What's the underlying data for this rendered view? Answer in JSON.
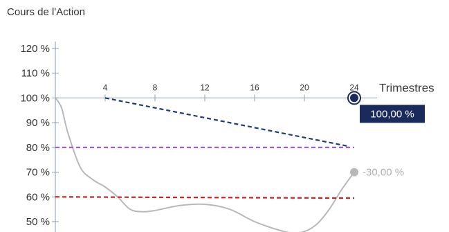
{
  "title": "Cours de l'Action",
  "chart_data": {
    "type": "line",
    "title": "Cours de l'Action",
    "xlabel": "Trimestres",
    "ylabel": "",
    "xlim": [
      0,
      24
    ],
    "ylim": [
      45,
      120
    ],
    "y_ticks": [
      {
        "value": 120,
        "label": "120 %"
      },
      {
        "value": 110,
        "label": "110 %"
      },
      {
        "value": 100,
        "label": "100 %"
      },
      {
        "value": 90,
        "label": "90 %"
      },
      {
        "value": 80,
        "label": "80 %"
      },
      {
        "value": 70,
        "label": "70 %"
      },
      {
        "value": 60,
        "label": "60 %",
        "color": "#cc2222"
      },
      {
        "value": 50,
        "label": "50 %"
      }
    ],
    "x_ticks": [
      {
        "value": 4,
        "label": "4"
      },
      {
        "value": 8,
        "label": "8"
      },
      {
        "value": 12,
        "label": "12"
      },
      {
        "value": 16,
        "label": "16"
      },
      {
        "value": 20,
        "label": "20"
      },
      {
        "value": 24,
        "label": "24"
      }
    ],
    "series": [
      {
        "style": "solid",
        "color": "#b8b8b8",
        "x": [
          0,
          0.5,
          1,
          2,
          3,
          4,
          5,
          6,
          7,
          8,
          10,
          12,
          14,
          16,
          18,
          19,
          20,
          21,
          22,
          23,
          24
        ],
        "y": [
          100,
          96,
          86,
          72,
          67,
          64,
          60,
          55,
          54,
          54.5,
          56.5,
          57,
          55,
          50,
          46.5,
          45.5,
          46,
          49,
          55,
          63,
          70
        ]
      },
      {
        "style": "dashed",
        "color": "#1f3c7a",
        "x": [
          4,
          23.5
        ],
        "y": [
          100,
          80.5
        ]
      },
      {
        "style": "dashed",
        "color": "#a05cd6",
        "x": [
          0,
          24
        ],
        "y": [
          80,
          80
        ]
      },
      {
        "style": "dashed",
        "color": "#cc2222",
        "x": [
          0,
          24
        ],
        "y": [
          60,
          59.5
        ]
      }
    ],
    "end_markers": [
      {
        "x": 24,
        "y": 100,
        "label": "100,00 %",
        "style": "ring",
        "color": "#1a2a5c",
        "label_bg": "#1a2a5c",
        "label_color": "#ffffff"
      },
      {
        "x": 24,
        "y": 70,
        "label": "-30,00 %",
        "style": "dot",
        "color": "#b8b8b8",
        "label_color": "#b0b0b0"
      }
    ],
    "grid": false,
    "colors": {
      "axis": "#8a9ab0",
      "text": "#333333"
    }
  }
}
